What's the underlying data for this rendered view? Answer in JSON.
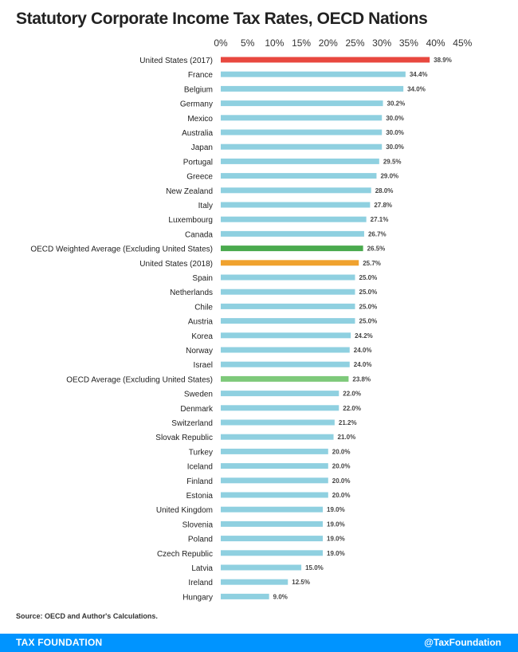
{
  "header": {
    "title": "Statutory Corporate Income Tax Rates, OECD Nations"
  },
  "footer": {
    "source": "Source: OECD and Author's Calculations.",
    "brand": "TAX FOUNDATION",
    "handle": "@TaxFoundation"
  },
  "colors": {
    "default_bar": "#8fd0e0",
    "us_2017": "#e8483f",
    "us_2018": "#f0a22e",
    "oecd_weighted": "#4aaa4e",
    "oecd_average": "#7ec97a",
    "footer_bg": "#0094ff"
  },
  "chart_data": {
    "type": "bar",
    "orientation": "horizontal",
    "title": "Statutory Corporate Income Tax Rates, OECD Nations",
    "xlabel": "",
    "ylabel": "",
    "xlim": [
      0,
      45
    ],
    "xticks": [
      "0%",
      "5%",
      "10%",
      "15%",
      "20%",
      "25%",
      "30%",
      "35%",
      "40%",
      "45%"
    ],
    "xtick_values": [
      0,
      5,
      10,
      15,
      20,
      25,
      30,
      35,
      40,
      45
    ],
    "axis_position": "top",
    "grid": false,
    "categories": [
      "United States (2017)",
      "France",
      "Belgium",
      "Germany",
      "Mexico",
      "Australia",
      "Japan",
      "Portugal",
      "Greece",
      "New Zealand",
      "Italy",
      "Luxembourg",
      "Canada",
      "OECD Weighted Average (Excluding United States)",
      "United States (2018)",
      "Spain",
      "Netherlands",
      "Chile",
      "Austria",
      "Korea",
      "Norway",
      "Israel",
      "OECD Average (Excluding United States)",
      "Sweden",
      "Denmark",
      "Switzerland",
      "Slovak Republic",
      "Turkey",
      "Iceland",
      "Finland",
      "Estonia",
      "United Kingdom",
      "Slovenia",
      "Poland",
      "Czech Republic",
      "Latvia",
      "Ireland",
      "Hungary"
    ],
    "values": [
      38.9,
      34.4,
      34.0,
      30.2,
      30.0,
      30.0,
      30.0,
      29.5,
      29.0,
      28.0,
      27.8,
      27.1,
      26.7,
      26.5,
      25.7,
      25.0,
      25.0,
      25.0,
      25.0,
      24.2,
      24.0,
      24.0,
      23.8,
      22.0,
      22.0,
      21.2,
      21.0,
      20.0,
      20.0,
      20.0,
      20.0,
      19.0,
      19.0,
      19.0,
      19.0,
      15.0,
      12.5,
      9.0
    ],
    "value_labels": [
      "38.9%",
      "34.4%",
      "34.0%",
      "30.2%",
      "30.0%",
      "30.0%",
      "30.0%",
      "29.5%",
      "29.0%",
      "28.0%",
      "27.8%",
      "27.1%",
      "26.7%",
      "26.5%",
      "25.7%",
      "25.0%",
      "25.0%",
      "25.0%",
      "25.0%",
      "24.2%",
      "24.0%",
      "24.0%",
      "23.8%",
      "22.0%",
      "22.0%",
      "21.2%",
      "21.0%",
      "20.0%",
      "20.0%",
      "20.0%",
      "20.0%",
      "19.0%",
      "19.0%",
      "19.0%",
      "19.0%",
      "15.0%",
      "12.5%",
      "9.0%"
    ],
    "highlight_colors": {
      "United States (2017)": "#e8483f",
      "United States (2018)": "#f0a22e",
      "OECD Weighted Average (Excluding United States)": "#4aaa4e",
      "OECD Average (Excluding United States)": "#7ec97a"
    }
  }
}
